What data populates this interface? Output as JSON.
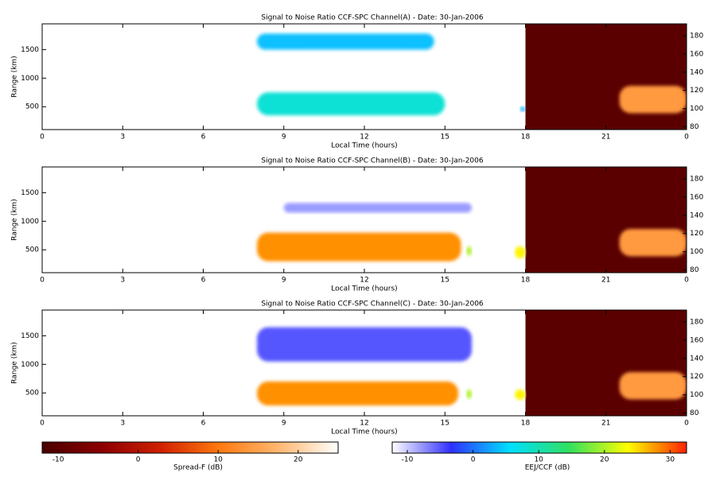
{
  "chart_data": [
    {
      "type": "heatmap",
      "title": "Signal to Noise Ratio CCF-SPC Channel(A) - Date: 30-Jan-2006",
      "xlabel": "Local Time (hours)",
      "ylabel": "Range (km)",
      "xlim": [
        0,
        24
      ],
      "xticks": [
        0,
        3,
        6,
        9,
        12,
        15,
        18,
        21,
        {
          "value": 24,
          "label": "0"
        }
      ],
      "ylim": [
        100,
        1950
      ],
      "yticks": [
        500,
        1000,
        1500
      ],
      "y2lim": [
        77,
        193
      ],
      "y2ticks": [
        80,
        100,
        120,
        140,
        160,
        180
      ],
      "cells": [
        {
          "x": [
            18,
            24
          ],
          "y": [
            77,
            193
          ],
          "value": -10,
          "axis": "y2"
        },
        {
          "x": [
            21.5,
            24
          ],
          "y": [
            95,
            125
          ],
          "value": 14,
          "axis": "y2"
        },
        {
          "x": [
            8,
            14.6
          ],
          "y": [
            1500,
            1780
          ],
          "value": 4
        },
        {
          "x": [
            8,
            15
          ],
          "y": [
            350,
            750
          ],
          "value": 8
        },
        {
          "x": [
            17.8,
            18
          ],
          "y": [
            420,
            500
          ],
          "value": 3
        }
      ]
    },
    {
      "type": "heatmap",
      "title": "Signal to Noise Ratio CCF-SPC Channel(B) - Date: 30-Jan-2006",
      "xlabel": "Local Time (hours)",
      "ylabel": "Range (km)",
      "xlim": [
        0,
        24
      ],
      "xticks": [
        0,
        3,
        6,
        9,
        12,
        15,
        18,
        21,
        {
          "value": 24,
          "label": "0"
        }
      ],
      "ylim": [
        100,
        1950
      ],
      "yticks": [
        500,
        1000,
        1500
      ],
      "y2lim": [
        77,
        193
      ],
      "y2ticks": [
        80,
        100,
        120,
        140,
        160,
        180
      ],
      "cells": [
        {
          "x": [
            18,
            24
          ],
          "y": [
            77,
            193
          ],
          "value": -10,
          "axis": "y2"
        },
        {
          "x": [
            21.5,
            24
          ],
          "y": [
            95,
            125
          ],
          "value": 14,
          "axis": "y2"
        },
        {
          "x": [
            9,
            16
          ],
          "y": [
            1150,
            1320
          ],
          "value": -8
        },
        {
          "x": [
            8,
            15.6
          ],
          "y": [
            300,
            800
          ],
          "value": 28
        },
        {
          "x": [
            15.8,
            16
          ],
          "y": [
            400,
            560
          ],
          "value": 20
        },
        {
          "x": [
            17.6,
            18
          ],
          "y": [
            350,
            560
          ],
          "value": 24
        }
      ]
    },
    {
      "type": "heatmap",
      "title": "Signal to Noise Ratio CCF-SPC Channel(C) - Date: 30-Jan-2006",
      "xlabel": "Local Time (hours)",
      "ylabel": "Range (km)",
      "xlim": [
        0,
        24
      ],
      "xticks": [
        0,
        3,
        6,
        9,
        12,
        15,
        18,
        21,
        {
          "value": 24,
          "label": "0"
        }
      ],
      "ylim": [
        100,
        1950
      ],
      "yticks": [
        500,
        1000,
        1500
      ],
      "y2lim": [
        77,
        193
      ],
      "y2ticks": [
        80,
        100,
        120,
        140,
        160,
        180
      ],
      "cells": [
        {
          "x": [
            18,
            24
          ],
          "y": [
            77,
            193
          ],
          "value": -10,
          "axis": "y2"
        },
        {
          "x": [
            21.5,
            24
          ],
          "y": [
            95,
            125
          ],
          "value": 14,
          "axis": "y2"
        },
        {
          "x": [
            8,
            16
          ],
          "y": [
            1050,
            1650
          ],
          "value": -5
        },
        {
          "x": [
            8,
            15.5
          ],
          "y": [
            280,
            700
          ],
          "value": 28
        },
        {
          "x": [
            15.8,
            16
          ],
          "y": [
            400,
            560
          ],
          "value": 20
        },
        {
          "x": [
            17.6,
            18
          ],
          "y": [
            380,
            560
          ],
          "value": 24
        }
      ]
    }
  ],
  "colorbars": [
    {
      "label": "Spread-F (dB)",
      "clim": [
        -12,
        25
      ],
      "ticks": [
        -10,
        0,
        10,
        20
      ],
      "stops": [
        "#4a0000",
        "#8a0000",
        "#d02000",
        "#ff7a10",
        "#ffb870",
        "#ffffff"
      ]
    },
    {
      "label": "EEJ/CCF (dB)",
      "clim": [
        -12.3,
        32.5
      ],
      "ticks": [
        -10,
        0,
        10,
        20,
        30
      ],
      "stops": [
        "#ffffff",
        "#3030ff",
        "#00e0ff",
        "#30e060",
        "#ffff00",
        "#ff2000"
      ]
    }
  ]
}
